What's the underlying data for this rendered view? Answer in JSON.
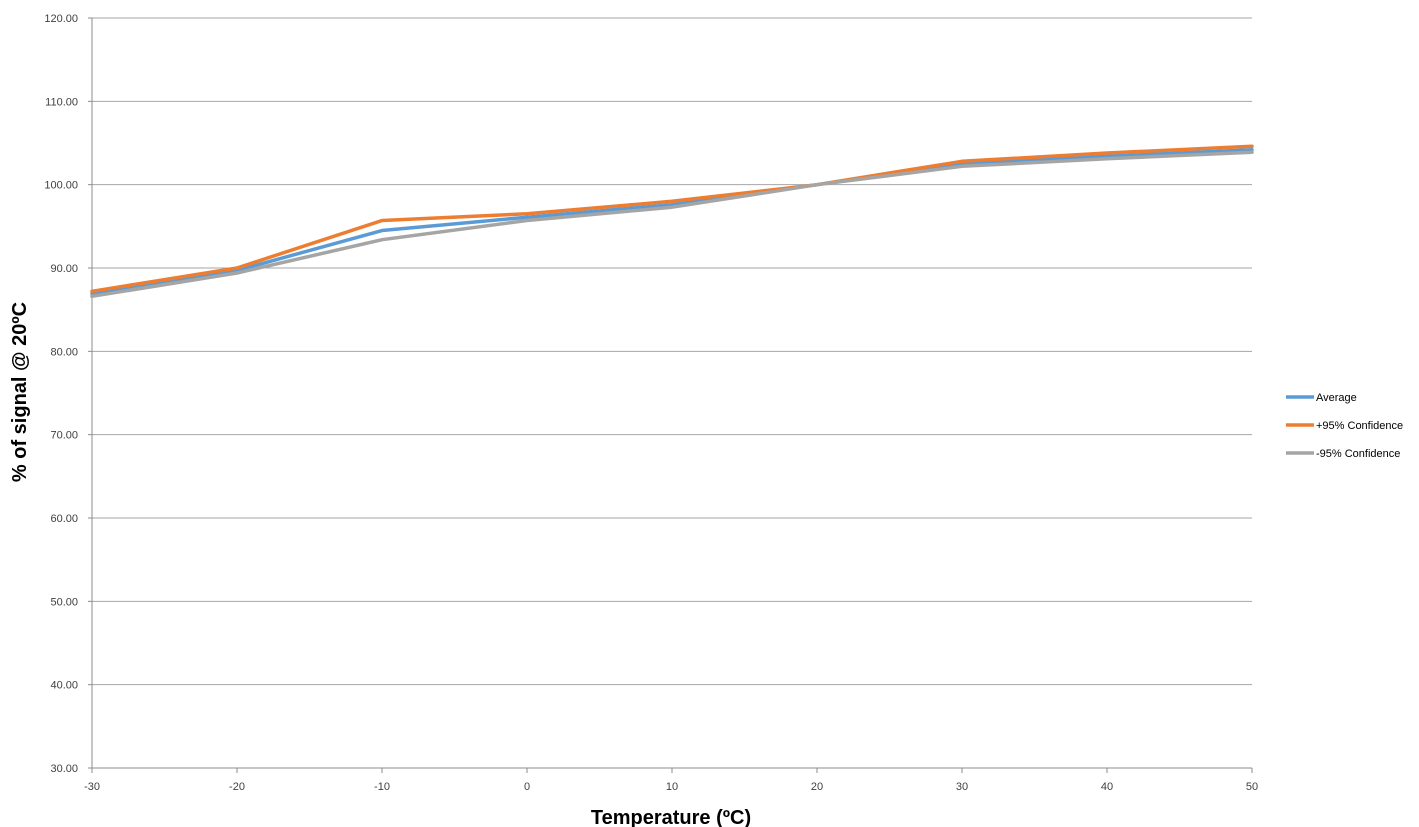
{
  "chart_data": {
    "type": "line",
    "title": "",
    "xlabel": "Temperature  (ºC)",
    "ylabel": "% of signal @ 20ºC",
    "x": [
      -30,
      -20,
      -10,
      0,
      10,
      20,
      30,
      40,
      50
    ],
    "x_tick_labels": [
      "-30",
      "-20",
      "-10",
      "0",
      "10",
      "20",
      "30",
      "40",
      "50"
    ],
    "y_tick_labels": [
      "30.00",
      "40.00",
      "50.00",
      "60.00",
      "70.00",
      "80.00",
      "90.00",
      "100.00",
      "110.00",
      "120.00"
    ],
    "xlim": [
      -30,
      50
    ],
    "ylim": [
      30,
      120
    ],
    "grid": true,
    "legend_position": "right",
    "series": [
      {
        "name": "Average",
        "color": "#5b9bd5",
        "values": [
          86.9,
          89.7,
          94.5,
          96.1,
          97.6,
          100.0,
          102.5,
          103.4,
          104.2
        ]
      },
      {
        "name": "+95% Confidence",
        "color": "#ed7d31",
        "values": [
          87.2,
          90.0,
          95.7,
          96.5,
          98.0,
          100.0,
          102.8,
          103.8,
          104.6
        ]
      },
      {
        "name": "-95% Confidence",
        "color": "#a5a5a5",
        "values": [
          86.6,
          89.4,
          93.4,
          95.7,
          97.3,
          100.0,
          102.2,
          103.1,
          103.9
        ]
      }
    ]
  }
}
